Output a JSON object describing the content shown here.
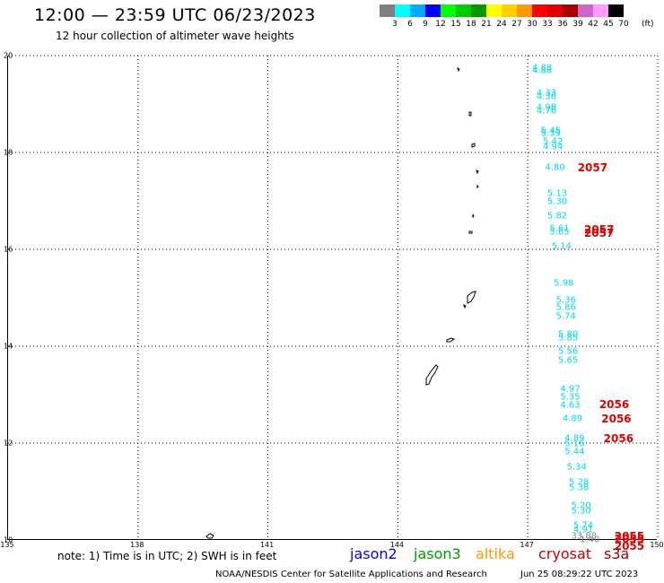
{
  "header": {
    "title": "12:00 — 23:59 UTC 06/23/2023",
    "subtitle": "12 hour collection of altimeter wave heights"
  },
  "colorbar": {
    "bins": [
      {
        "label": "3",
        "color": "#808080"
      },
      {
        "label": "6",
        "color": "#00ffff"
      },
      {
        "label": "9",
        "color": "#00aaff"
      },
      {
        "label": "12",
        "color": "#0000ff"
      },
      {
        "label": "15",
        "color": "#00ff00"
      },
      {
        "label": "18",
        "color": "#00cc00"
      },
      {
        "label": "21",
        "color": "#009900"
      },
      {
        "label": "24",
        "color": "#ffff00"
      },
      {
        "label": "27",
        "color": "#ffd000"
      },
      {
        "label": "30",
        "color": "#ff9900"
      },
      {
        "label": "33",
        "color": "#ff0000"
      },
      {
        "label": "36",
        "color": "#dd0000"
      },
      {
        "label": "39",
        "color": "#aa0000"
      },
      {
        "label": "42",
        "color": "#cc66cc"
      },
      {
        "label": "45",
        "color": "#ff99ff"
      },
      {
        "label": "70",
        "color": "#000000"
      }
    ],
    "units": "(ft)"
  },
  "map": {
    "lat_range": [
      10,
      20
    ],
    "lon_range": [
      135,
      150
    ],
    "lat_ticks": [
      "20",
      "18",
      "16",
      "14",
      "12",
      "10"
    ],
    "lon_ticks": [
      "135",
      "138",
      "141",
      "144",
      "147",
      "150"
    ],
    "swh_color": "#00d9e6",
    "pass_color": "#e00000",
    "observations": [
      {
        "lat": 19.75,
        "lon": 147.1,
        "v": "4.88"
      },
      {
        "lat": 19.68,
        "lon": 147.1,
        "v": "4.88"
      },
      {
        "lat": 19.22,
        "lon": 147.2,
        "v": "4.33"
      },
      {
        "lat": 19.15,
        "lon": 147.2,
        "v": "4.36"
      },
      {
        "lat": 18.92,
        "lon": 147.2,
        "v": "4.98"
      },
      {
        "lat": 18.85,
        "lon": 147.2,
        "v": "4.76"
      },
      {
        "lat": 18.45,
        "lon": 147.3,
        "v": "5.45"
      },
      {
        "lat": 18.38,
        "lon": 147.3,
        "v": "5.39"
      },
      {
        "lat": 18.22,
        "lon": 147.35,
        "v": "5.42"
      },
      {
        "lat": 18.12,
        "lon": 147.35,
        "v": "4.94"
      },
      {
        "lat": 17.68,
        "lon": 147.4,
        "v": "4.80"
      },
      {
        "lat": 17.15,
        "lon": 147.45,
        "v": "5.13"
      },
      {
        "lat": 16.98,
        "lon": 147.45,
        "v": "5.30"
      },
      {
        "lat": 16.68,
        "lon": 147.45,
        "v": "5.82"
      },
      {
        "lat": 16.42,
        "lon": 147.5,
        "v": "5.61"
      },
      {
        "lat": 16.35,
        "lon": 147.5,
        "v": "5.65"
      },
      {
        "lat": 16.05,
        "lon": 147.55,
        "v": "5.14"
      },
      {
        "lat": 15.3,
        "lon": 147.6,
        "v": "5.98"
      },
      {
        "lat": 14.95,
        "lon": 147.65,
        "v": "5.36"
      },
      {
        "lat": 14.8,
        "lon": 147.65,
        "v": "5.86"
      },
      {
        "lat": 14.62,
        "lon": 147.65,
        "v": "5.74"
      },
      {
        "lat": 14.25,
        "lon": 147.7,
        "v": "5.80"
      },
      {
        "lat": 14.16,
        "lon": 147.7,
        "v": "5.85"
      },
      {
        "lat": 13.88,
        "lon": 147.7,
        "v": "5.56"
      },
      {
        "lat": 13.7,
        "lon": 147.7,
        "v": "5.65"
      },
      {
        "lat": 13.12,
        "lon": 147.75,
        "v": "4.97"
      },
      {
        "lat": 12.95,
        "lon": 147.75,
        "v": "5.35"
      },
      {
        "lat": 12.78,
        "lon": 147.75,
        "v": "4.63"
      },
      {
        "lat": 12.5,
        "lon": 147.8,
        "v": "4.89"
      },
      {
        "lat": 12.1,
        "lon": 147.85,
        "v": "4.89"
      },
      {
        "lat": 11.98,
        "lon": 147.85,
        "v": "5.16"
      },
      {
        "lat": 11.82,
        "lon": 147.85,
        "v": "5.44"
      },
      {
        "lat": 11.5,
        "lon": 147.9,
        "v": "5.34"
      },
      {
        "lat": 11.18,
        "lon": 147.95,
        "v": "5.28"
      },
      {
        "lat": 11.08,
        "lon": 147.95,
        "v": "5.38"
      },
      {
        "lat": 10.7,
        "lon": 148.0,
        "v": "5.20"
      },
      {
        "lat": 10.6,
        "lon": 148.0,
        "v": "5.30"
      },
      {
        "lat": 10.3,
        "lon": 148.05,
        "v": "5.74"
      },
      {
        "lat": 10.2,
        "lon": 148.05,
        "v": "4.91"
      },
      {
        "lat": 10.08,
        "lon": 148.0,
        "v": "33.88"
      },
      {
        "lat": 10.0,
        "lon": 148.2,
        "v": "1.40"
      }
    ],
    "passes": [
      {
        "lat": 17.68,
        "lon": 148.15,
        "v": "2057"
      },
      {
        "lat": 16.4,
        "lon": 148.3,
        "v": "2057"
      },
      {
        "lat": 16.33,
        "lon": 148.3,
        "v": "2057"
      },
      {
        "lat": 12.8,
        "lon": 148.65,
        "v": "2056"
      },
      {
        "lat": 12.5,
        "lon": 148.7,
        "v": "2056"
      },
      {
        "lat": 12.1,
        "lon": 148.75,
        "v": "2056"
      },
      {
        "lat": 10.08,
        "lon": 149.0,
        "v": "2055"
      },
      {
        "lat": 10.01,
        "lon": 149.0,
        "v": "2055"
      },
      {
        "lat": 9.87,
        "lon": 149.0,
        "v": "2055"
      }
    ]
  },
  "footer": {
    "note": "note: 1) Time is in UTC; 2) SWH is in feet",
    "missions": [
      {
        "label": "jason2",
        "color": "#0000ff"
      },
      {
        "label": "jason3",
        "color": "#009900"
      },
      {
        "label": "altika",
        "color": "#ff9900"
      },
      {
        "label": "cryosat",
        "color": "#cc0000"
      },
      {
        "label": "s3a",
        "color": "#990000"
      }
    ],
    "credit": "NOAA/NESDIS Center for Satellite Applications and Research",
    "timestamp": "Jun 25 08:29:22 UTC 2023"
  }
}
